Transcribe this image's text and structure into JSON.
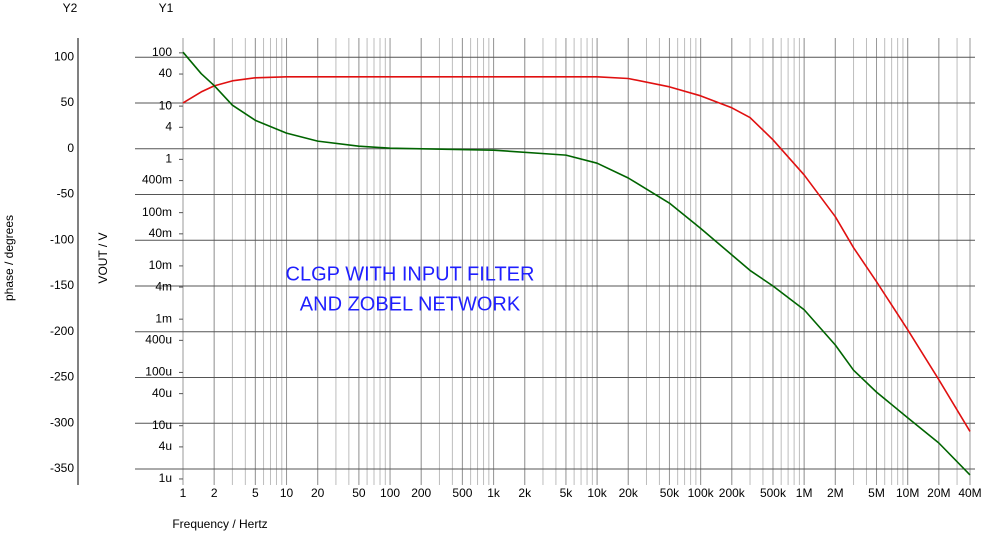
{
  "chart_data": {
    "type": "line",
    "x_axis_label": "Frequency / Hertz",
    "y_axis_label": "VOUT / V",
    "y2_axis_label": "phase / degrees",
    "y_axis_name": "Y1",
    "y2_axis_name": "Y2",
    "annotations": [
      "CLGP  WITH INPUT FILTER",
      "AND ZOBEL NETWORK"
    ],
    "annotation_color": "#1f1fff",
    "log_x": true,
    "log_y": true,
    "grid": true,
    "minor_grid": true,
    "x": [
      1,
      1.5,
      2,
      3,
      5,
      10,
      20,
      50,
      100,
      1000,
      5000,
      10000,
      20000,
      50000,
      100000,
      200000,
      300000,
      500000,
      1000000,
      2000000,
      3000000,
      5000000,
      10000000,
      20000000,
      40000000
    ],
    "series": [
      {
        "color": "#e01010",
        "axis": "y",
        "values": [
          11.5,
          18.5,
          24,
          29.8,
          34,
          35.5,
          35.5,
          35.5,
          35.5,
          35.5,
          35.5,
          35.5,
          33,
          23,
          15.6,
          9.3,
          6.1,
          2.33,
          0.51,
          0.084,
          0.022,
          0.00506,
          0.000635,
          7.3e-05,
          7.8e-06
        ]
      },
      {
        "color": "#006400",
        "axis": "y2",
        "values": [
          105.5,
          82,
          69,
          47.6,
          31,
          17,
          8.3,
          2.8,
          0.6,
          -1.6,
          -7,
          -15.8,
          -32,
          -59.5,
          -87,
          -116,
          -133,
          -150,
          -176,
          -214.5,
          -242,
          -266,
          -294,
          -321.6,
          -356.5
        ]
      }
    ],
    "xlim": [
      1,
      40000000
    ],
    "xticks": [
      1,
      2,
      5,
      10,
      20,
      50,
      100,
      200,
      500,
      {
        "value": 1000,
        "label": "1k"
      },
      {
        "value": 2000,
        "label": "2k"
      },
      {
        "value": 5000,
        "label": "5k"
      },
      {
        "value": 10000,
        "label": "10k"
      },
      {
        "value": 20000,
        "label": "20k"
      },
      {
        "value": 50000,
        "label": "50k"
      },
      {
        "value": 100000,
        "label": "100k"
      },
      {
        "value": 200000,
        "label": "200k"
      },
      {
        "value": 500000,
        "label": "500k"
      },
      {
        "value": 1000000,
        "label": "1M"
      },
      {
        "value": 2000000,
        "label": "2M"
      },
      {
        "value": 5000000,
        "label": "5M"
      },
      {
        "value": 10000000,
        "label": "10M"
      },
      {
        "value": 20000000,
        "label": "20M"
      },
      {
        "value": 40000000,
        "label": "40M"
      }
    ],
    "ylim": [
      7.7e-07,
      190
    ],
    "yticks": [
      100,
      40,
      10,
      4,
      1,
      {
        "value": 0.4,
        "label": "400m"
      },
      {
        "value": 0.1,
        "label": "100m"
      },
      {
        "value": 0.04,
        "label": "40m"
      },
      {
        "value": 0.01,
        "label": "10m"
      },
      {
        "value": 0.004,
        "label": "4m"
      },
      {
        "value": 0.001,
        "label": "1m"
      },
      {
        "value": 0.0004,
        "label": "400u"
      },
      {
        "value": 0.0001,
        "label": "100u"
      },
      {
        "value": 4e-05,
        "label": "40u"
      },
      {
        "value": 1e-05,
        "label": "10u"
      },
      {
        "value": 4e-06,
        "label": "4u"
      },
      {
        "value": 1e-06,
        "label": "1u"
      }
    ],
    "y2lim": [
      -367.5,
      121
    ],
    "y2ticks": [
      100,
      50,
      0,
      -50,
      -100,
      -150,
      -200,
      -250,
      -300,
      -350
    ]
  }
}
